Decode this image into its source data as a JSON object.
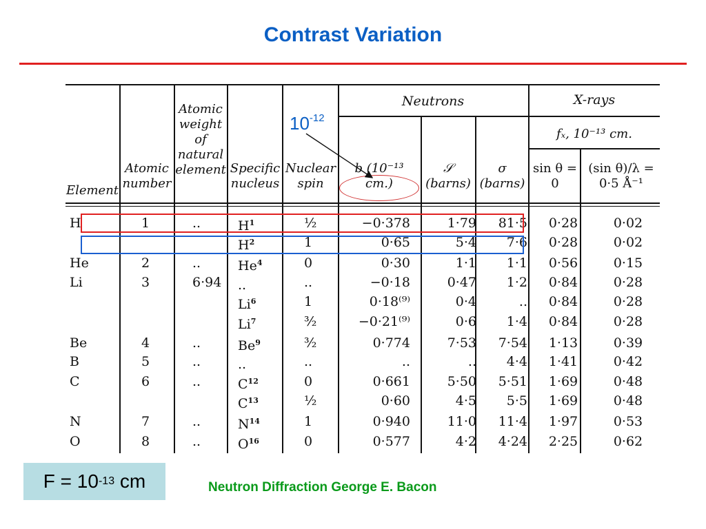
{
  "slide": {
    "title": "Contrast Variation",
    "annotation_callout": {
      "base": "10",
      "exponent": "-12"
    },
    "f_box": {
      "prefix": "F = 10",
      "exponent": "-13",
      "suffix": " cm"
    },
    "source": "Neutron Diffraction George E. Bacon",
    "accent_colors": {
      "title": "#0b5fc4",
      "rule": "#e02020",
      "highlight_red": "#e02020",
      "highlight_blue": "#1a5fd0",
      "source": "#0a9a1a",
      "f_box_bg": "#b7dde3"
    }
  },
  "table": {
    "group_headers": {
      "neutrons": "Neutrons",
      "xrays": "X-rays",
      "xrays_sub": "fₓ, 10⁻¹³ cm."
    },
    "headers": {
      "element": "Element",
      "atomic_number": "Atomic number",
      "atomic_weight": "Atomic weight of natural element",
      "specific_nucleus": "Specific nucleus",
      "nuclear_spin": "Nuclear spin",
      "b": "b (10⁻¹³ cm.)",
      "S": "𝒮 (barns)",
      "sigma": "σ (barns)",
      "x_sin0": "sin θ = 0",
      "x_sin05": "(sin θ)/λ = 0·5 Å⁻¹"
    },
    "rows": [
      {
        "element": "H",
        "atomic_number": "1",
        "atomic_weight": "..",
        "nucleus": "H",
        "mass": "1",
        "spin": "½",
        "b": "−0·378",
        "S": "1·79",
        "sigma": "81·5",
        "x0": "0·28",
        "x05": "0·02"
      },
      {
        "element": "",
        "atomic_number": "",
        "atomic_weight": "",
        "nucleus": "H",
        "mass": "2",
        "spin": "1",
        "b": "0·65",
        "S": "5·4",
        "sigma": "7·6",
        "x0": "0·28",
        "x05": "0·02"
      },
      {
        "element": "He",
        "atomic_number": "2",
        "atomic_weight": "..",
        "nucleus": "He",
        "mass": "4",
        "spin": "0",
        "b": "0·30",
        "S": "1·1",
        "sigma": "1·1",
        "x0": "0·56",
        "x05": "0·15"
      },
      {
        "element": "Li",
        "atomic_number": "3",
        "atomic_weight": "6·94",
        "nucleus": "..",
        "mass": "",
        "spin": "..",
        "b": "−0·18",
        "S": "0·47",
        "sigma": "1·2",
        "x0": "0·84",
        "x05": "0·28"
      },
      {
        "element": "",
        "atomic_number": "",
        "atomic_weight": "",
        "nucleus": "Li",
        "mass": "6",
        "spin": "1",
        "b": "0·18⁽⁹⁾",
        "S": "0·4",
        "sigma": "..",
        "x0": "0·84",
        "x05": "0·28"
      },
      {
        "element": "",
        "atomic_number": "",
        "atomic_weight": "",
        "nucleus": "Li",
        "mass": "7",
        "spin": "³⁄₂",
        "b": "−0·21⁽⁹⁾",
        "S": "0·6",
        "sigma": "1·4",
        "x0": "0·84",
        "x05": "0·28"
      },
      {
        "element": "Be",
        "atomic_number": "4",
        "atomic_weight": "..",
        "nucleus": "Be",
        "mass": "9",
        "spin": "³⁄₂",
        "b": "0·774",
        "S": "7·53",
        "sigma": "7·54",
        "x0": "1·13",
        "x05": "0·39"
      },
      {
        "element": "B",
        "atomic_number": "5",
        "atomic_weight": "..",
        "nucleus": "..",
        "mass": "",
        "spin": "..",
        "b": "..",
        "S": "..",
        "sigma": "4·4",
        "x0": "1·41",
        "x05": "0·42"
      },
      {
        "element": "C",
        "atomic_number": "6",
        "atomic_weight": "..",
        "nucleus": "C",
        "mass": "12",
        "spin": "0",
        "b": "0·661",
        "S": "5·50",
        "sigma": "5·51",
        "x0": "1·69",
        "x05": "0·48"
      },
      {
        "element": "",
        "atomic_number": "",
        "atomic_weight": "",
        "nucleus": "C",
        "mass": "13",
        "spin": "½",
        "b": "0·60",
        "S": "4·5",
        "sigma": "5·5",
        "x0": "1·69",
        "x05": "0·48"
      },
      {
        "element": "N",
        "atomic_number": "7",
        "atomic_weight": "..",
        "nucleus": "N",
        "mass": "14",
        "spin": "1",
        "b": "0·940",
        "S": "11·0",
        "sigma": "11·4",
        "x0": "1·97",
        "x05": "0·53"
      },
      {
        "element": "O",
        "atomic_number": "8",
        "atomic_weight": "..",
        "nucleus": "O",
        "mass": "16",
        "spin": "0",
        "b": "0·577",
        "S": "4·2",
        "sigma": "4·24",
        "x0": "2·25",
        "x05": "0·62"
      }
    ]
  }
}
